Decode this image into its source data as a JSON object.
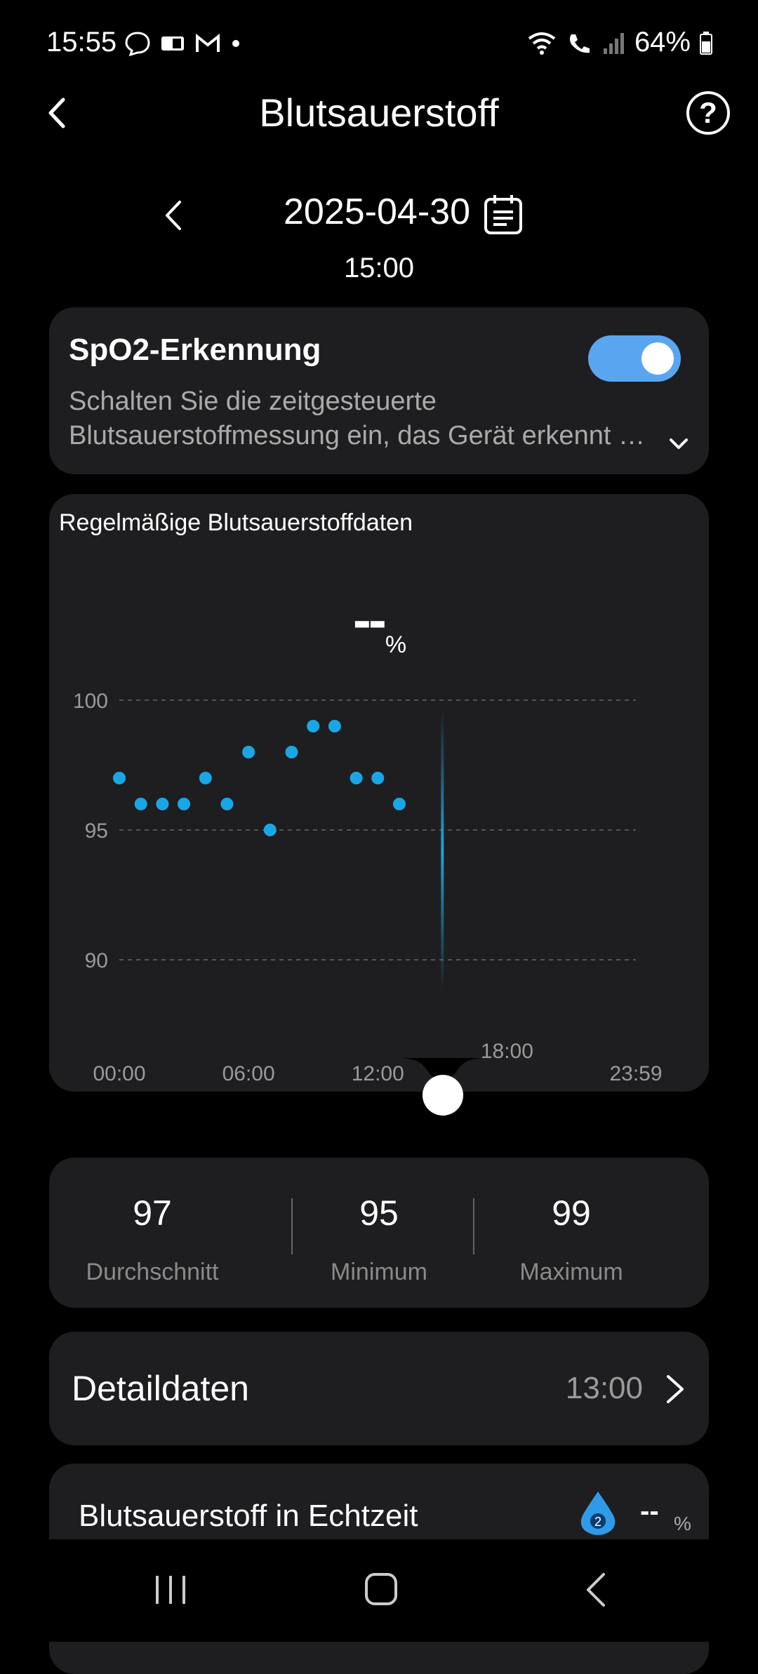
{
  "status_bar": {
    "time": "15:55",
    "battery": "64%"
  },
  "header": {
    "title": "Blutsauerstoff"
  },
  "date_nav": {
    "date": "2025-04-30",
    "time": "15:00"
  },
  "spo2_card": {
    "title": "SpO2-Erkennung",
    "toggle_on": true,
    "description_line1": "Schalten Sie die zeitgesteuerte",
    "description_line2": "Blutsauerstoffmessung ein, das Gerät erkennt automatisch Ihren Blutsauerstoff"
  },
  "chart_card": {
    "title": "Regelmäßige Blutsauerstoffdaten",
    "current_value": "--",
    "current_unit": "%"
  },
  "chart_data": {
    "type": "scatter",
    "title": "Regelmäßige Blutsauerstoffdaten",
    "xlabel": "",
    "ylabel": "",
    "x_ticks": [
      "00:00",
      "06:00",
      "12:00",
      "18:00",
      "23:59"
    ],
    "y_ticks": [
      100,
      95,
      90
    ],
    "ylim": [
      89,
      100
    ],
    "grid": true,
    "cursor_time": "15:00",
    "series": [
      {
        "color": "#1aa6e6",
        "points": [
          {
            "x": "00:00",
            "y": 97
          },
          {
            "x": "01:00",
            "y": 96
          },
          {
            "x": "02:00",
            "y": 96
          },
          {
            "x": "03:00",
            "y": 96
          },
          {
            "x": "04:00",
            "y": 97
          },
          {
            "x": "05:00",
            "y": 96
          },
          {
            "x": "06:00",
            "y": 98
          },
          {
            "x": "07:00",
            "y": 95
          },
          {
            "x": "08:00",
            "y": 98
          },
          {
            "x": "09:00",
            "y": 99
          },
          {
            "x": "10:00",
            "y": 99
          },
          {
            "x": "11:00",
            "y": 97
          },
          {
            "x": "12:00",
            "y": 97
          },
          {
            "x": "13:00",
            "y": 96
          }
        ]
      }
    ]
  },
  "stats": {
    "average": {
      "value": "97",
      "label": "Durchschnitt"
    },
    "minimum": {
      "value": "95",
      "label": "Minimum"
    },
    "maximum": {
      "value": "99",
      "label": "Maximum"
    }
  },
  "detail": {
    "label": "Detaildaten",
    "time": "13:00"
  },
  "realtime": {
    "label": "Blutsauerstoff in Echtzeit",
    "badge": "2",
    "value": "--",
    "unit": "%"
  },
  "colors": {
    "accent": "#1aa6e6",
    "toggle": "#5aa5f0",
    "card": "#1e1e20"
  }
}
